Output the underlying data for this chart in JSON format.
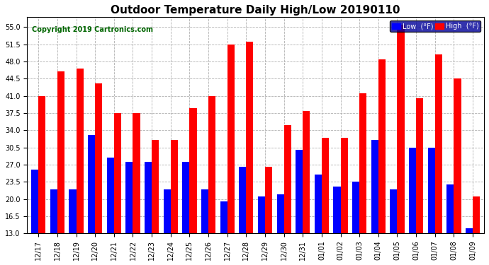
{
  "title": "Outdoor Temperature Daily High/Low 20190110",
  "copyright": "Copyright 2019 Cartronics.com",
  "categories": [
    "12/17",
    "12/18",
    "12/19",
    "12/20",
    "12/21",
    "12/22",
    "12/23",
    "12/24",
    "12/25",
    "12/26",
    "12/27",
    "12/28",
    "12/29",
    "12/30",
    "12/31",
    "01/01",
    "01/02",
    "01/03",
    "01/04",
    "01/05",
    "01/06",
    "01/07",
    "01/08",
    "01/09"
  ],
  "low_values": [
    26.0,
    22.0,
    22.0,
    33.0,
    28.5,
    27.5,
    27.5,
    22.0,
    27.5,
    22.0,
    19.5,
    26.5,
    20.5,
    21.0,
    30.0,
    25.0,
    22.5,
    23.5,
    32.0,
    22.0,
    30.5,
    30.5,
    23.0,
    14.0
  ],
  "high_values": [
    41.0,
    46.0,
    46.5,
    43.5,
    37.5,
    37.5,
    32.0,
    32.0,
    38.5,
    41.0,
    51.5,
    52.0,
    26.5,
    35.0,
    38.0,
    32.5,
    32.5,
    41.5,
    48.5,
    55.5,
    40.5,
    49.5,
    44.5,
    20.5
  ],
  "low_color": "#0000ff",
  "high_color": "#ff0000",
  "bg_color": "#ffffff",
  "plot_bg_color": "#ffffff",
  "grid_color": "#b0b0b0",
  "ylim_min": 13.0,
  "ylim_max": 57.0,
  "yticks": [
    13.0,
    16.5,
    20.0,
    23.5,
    27.0,
    30.5,
    34.0,
    37.5,
    41.0,
    44.5,
    48.0,
    51.5,
    55.0
  ],
  "legend_low_label": "Low  (°F)",
  "legend_high_label": "High  (°F)",
  "title_fontsize": 11,
  "copyright_fontsize": 7,
  "tick_fontsize": 7,
  "bar_width": 0.38,
  "baseline": 13.0
}
